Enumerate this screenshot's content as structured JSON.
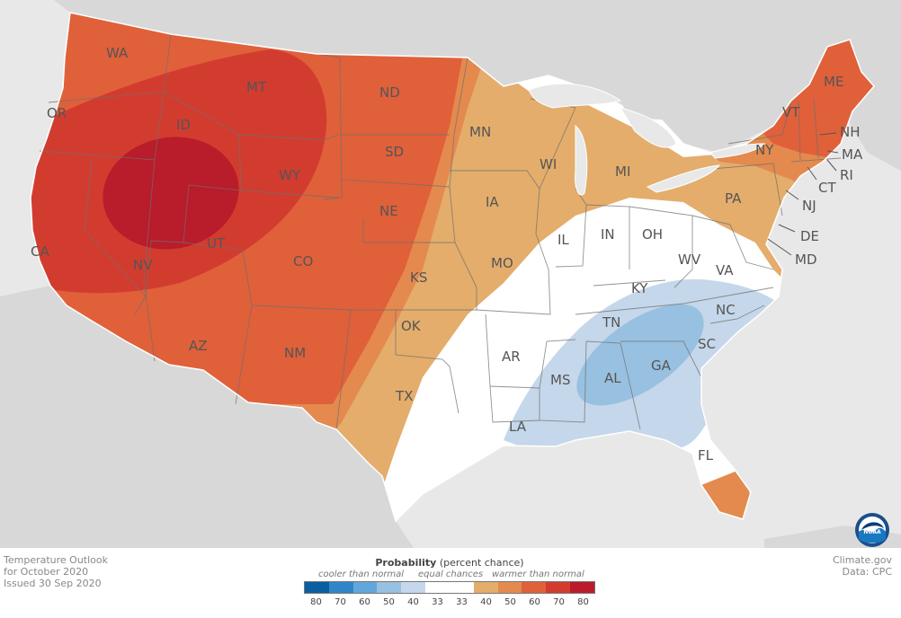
{
  "title_block": {
    "line1": "Temperature Outlook",
    "line2": "for October 2020",
    "line3": "Issued 30 Sep 2020"
  },
  "credit": {
    "line1": "Climate.gov",
    "line2": "Data: CPC",
    "logo_text": "NOAA"
  },
  "legend": {
    "title_bold": "Probability",
    "title_rest": " (percent chance)",
    "cooler_label": "cooler than normal",
    "equal_label": "equal chances",
    "warmer_label": "warmer than normal",
    "cool_ticks": [
      "80",
      "70",
      "60",
      "50",
      "40",
      "33"
    ],
    "warm_ticks": [
      "33",
      "40",
      "50",
      "60",
      "70",
      "80"
    ],
    "swatches": [
      "#0a5fa0",
      "#2e86c8",
      "#62a7db",
      "#98c0e0",
      "#c5d7ea",
      "#ffffff",
      "#ffffff",
      "#e4ad6c",
      "#e48a4e",
      "#e0603a",
      "#d23c2f",
      "#b91c2a"
    ]
  },
  "colors": {
    "ocean": "#e8e8e8",
    "outside_land": "#d8d8d8",
    "equal": "#ffffff",
    "above_33": "#e4ad6c",
    "above_40": "#e48a4e",
    "above_50": "#e0603a",
    "above_60": "#d23c2f",
    "above_70": "#b91c2a",
    "below_33": "#c5d7ea",
    "below_40": "#98c0e0"
  },
  "states": [
    {
      "abbr": "WA"
    },
    {
      "abbr": "OR"
    },
    {
      "abbr": "CA"
    },
    {
      "abbr": "ID"
    },
    {
      "abbr": "NV"
    },
    {
      "abbr": "MT"
    },
    {
      "abbr": "WY"
    },
    {
      "abbr": "UT"
    },
    {
      "abbr": "AZ"
    },
    {
      "abbr": "CO"
    },
    {
      "abbr": "NM"
    },
    {
      "abbr": "ND"
    },
    {
      "abbr": "SD"
    },
    {
      "abbr": "NE"
    },
    {
      "abbr": "KS"
    },
    {
      "abbr": "OK"
    },
    {
      "abbr": "TX"
    },
    {
      "abbr": "MN"
    },
    {
      "abbr": "IA"
    },
    {
      "abbr": "MO"
    },
    {
      "abbr": "AR"
    },
    {
      "abbr": "LA"
    },
    {
      "abbr": "WI"
    },
    {
      "abbr": "IL"
    },
    {
      "abbr": "MS"
    },
    {
      "abbr": "MI"
    },
    {
      "abbr": "IN"
    },
    {
      "abbr": "KY"
    },
    {
      "abbr": "TN"
    },
    {
      "abbr": "AL"
    },
    {
      "abbr": "OH"
    },
    {
      "abbr": "GA"
    },
    {
      "abbr": "FL"
    },
    {
      "abbr": "WV"
    },
    {
      "abbr": "VA"
    },
    {
      "abbr": "NC"
    },
    {
      "abbr": "SC"
    },
    {
      "abbr": "PA"
    },
    {
      "abbr": "NY"
    },
    {
      "abbr": "VT"
    },
    {
      "abbr": "ME"
    },
    {
      "abbr": "NH"
    },
    {
      "abbr": "MA"
    },
    {
      "abbr": "RI"
    },
    {
      "abbr": "CT"
    },
    {
      "abbr": "NJ"
    },
    {
      "abbr": "DE"
    },
    {
      "abbr": "MD"
    }
  ]
}
